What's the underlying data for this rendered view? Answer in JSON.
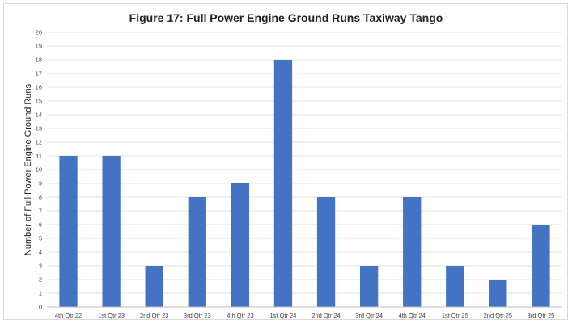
{
  "chart_data": {
    "type": "bar",
    "title": "Figure 17: Full Power Engine Ground Runs Taxiway Tango",
    "xlabel": "",
    "ylabel": "Number of Full Power Engine Ground Runs",
    "ylim": [
      0,
      20
    ],
    "y_tick_step": 1,
    "grid": true,
    "legend": "none",
    "bar_color": "#4472c4",
    "grid_color": "#e3e3e3",
    "categories": [
      "4th Qtr 22",
      "1st Qtr 23",
      "2nd Qtr 23",
      "3rd Qtr 23",
      "4th Qtr 23",
      "1st Qtr 24",
      "2nd Qtr 24",
      "3rd Qtr 24",
      "4th Qtr 24",
      "1st Qtr 25",
      "2nd Qtr 25",
      "3rd Qtr 25"
    ],
    "values": [
      11,
      11,
      3,
      8,
      9,
      18,
      8,
      3,
      8,
      3,
      2,
      6
    ]
  }
}
